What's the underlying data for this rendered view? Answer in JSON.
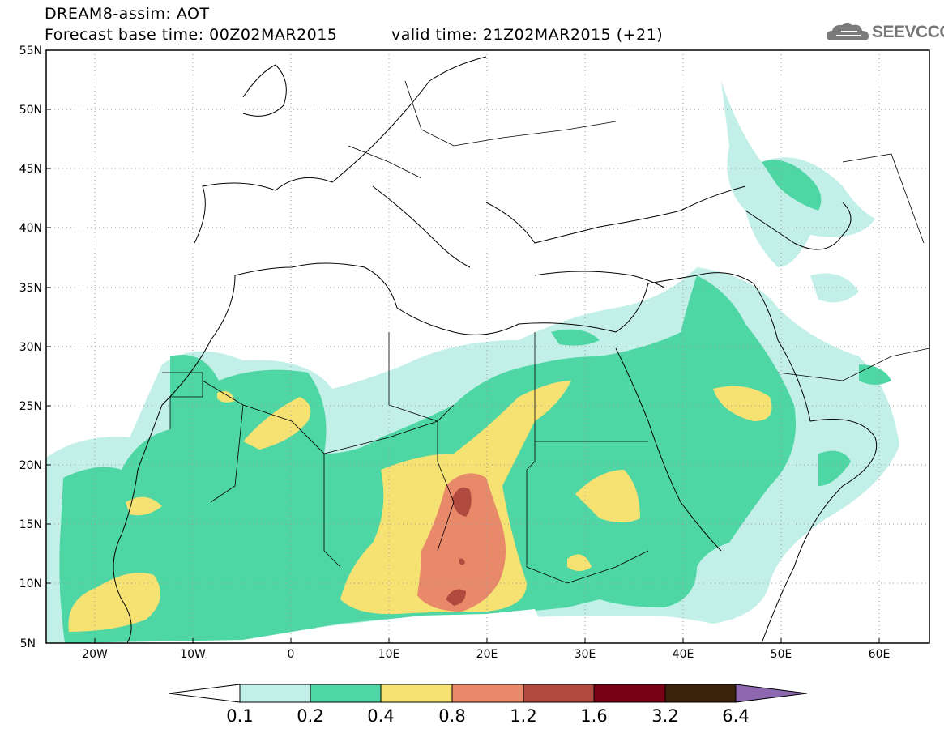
{
  "title": {
    "line1": "DREAM8-assim: AOT",
    "line2": "Forecast base time: 00Z02MAR2015",
    "valid": "valid time: 21Z02MAR2015 (+21)"
  },
  "logo": {
    "text": "SEEVCCC",
    "icon": "cloud-icon"
  },
  "map": {
    "lat_labels": [
      "55N",
      "50N",
      "45N",
      "40N",
      "35N",
      "30N",
      "25N",
      "20N",
      "15N",
      "10N",
      "5N"
    ],
    "lon_labels": [
      "20W",
      "10W",
      "0",
      "10E",
      "20E",
      "30E",
      "40E",
      "50E",
      "60E"
    ],
    "lat_range": [
      5,
      55
    ],
    "lon_range": [
      -25,
      65
    ],
    "gridlines": "dotted"
  },
  "colorbar": {
    "labels": [
      "0.1",
      "0.2",
      "0.4",
      "0.8",
      "1.2",
      "1.6",
      "3.2",
      "6.4"
    ],
    "colors": [
      "#ffffff",
      "#c2f0e8",
      "#4fd6a5",
      "#f6e273",
      "#e8896a",
      "#b04a3e",
      "#760014",
      "#3b220c",
      "#8e67b0"
    ]
  }
}
